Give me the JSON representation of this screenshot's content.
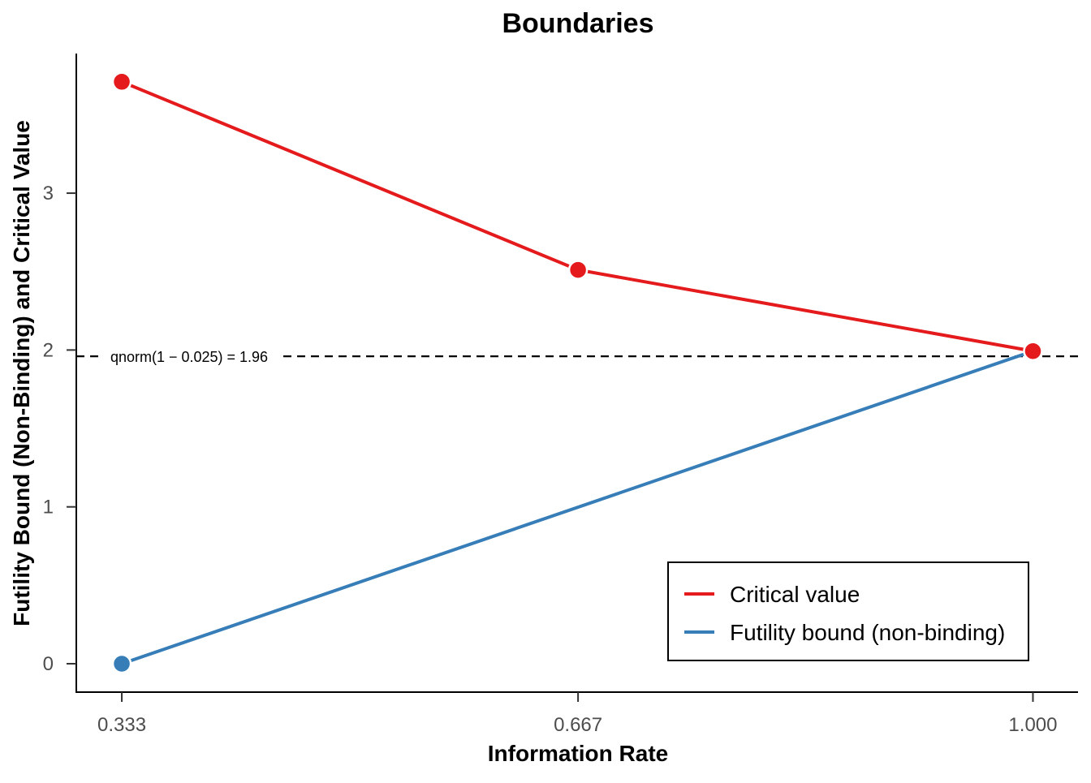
{
  "chart_data": {
    "type": "line",
    "title": "Boundaries",
    "xlabel": "Information Rate",
    "ylabel": "Futility Bound (Non-Binding) and Critical Value",
    "x": [
      0.333,
      0.667,
      1.0
    ],
    "x_tick_labels": [
      "0.333",
      "0.667",
      "1.000"
    ],
    "y_ticks": [
      0,
      1,
      2,
      3
    ],
    "y_tick_labels": [
      "0",
      "1",
      "2",
      "3"
    ],
    "xlim": [
      0.2997,
      1.033
    ],
    "ylim": [
      -0.181,
      3.89
    ],
    "grid": false,
    "series": [
      {
        "name": "Critical value",
        "color": "#e41a1c",
        "x": [
          0.333,
          0.667,
          1.0
        ],
        "values": [
          3.71,
          2.511,
          1.993
        ]
      },
      {
        "name": "Futility bound (non-binding)",
        "color": "#377eb8",
        "x": [
          0.333,
          1.0
        ],
        "values": [
          0,
          1.993
        ]
      }
    ],
    "reference_line": {
      "y": 1.96,
      "label": "qnorm(1 − 0.025) = 1.96",
      "style": "dashed"
    },
    "legend": {
      "placement": "bottom-right",
      "entries": [
        "Critical value",
        "Futility bound (non-binding)"
      ]
    }
  }
}
